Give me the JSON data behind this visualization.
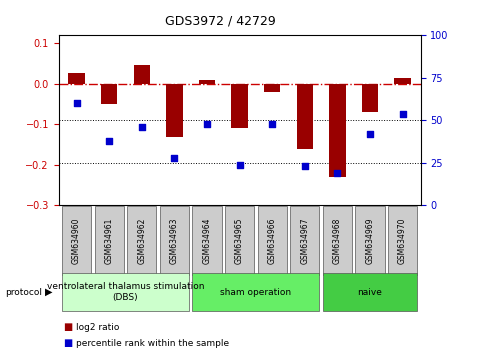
{
  "title": "GDS3972 / 42729",
  "samples": [
    "GSM634960",
    "GSM634961",
    "GSM634962",
    "GSM634963",
    "GSM634964",
    "GSM634965",
    "GSM634966",
    "GSM634967",
    "GSM634968",
    "GSM634969",
    "GSM634970"
  ],
  "log2_ratio": [
    0.027,
    -0.05,
    0.048,
    -0.13,
    0.01,
    -0.11,
    -0.02,
    -0.16,
    -0.23,
    -0.07,
    0.015
  ],
  "percentile_rank": [
    60,
    38,
    46,
    28,
    48,
    24,
    48,
    23,
    19,
    42,
    54
  ],
  "bar_color": "#990000",
  "dot_color": "#0000cc",
  "left_ylim": [
    -0.3,
    0.12
  ],
  "right_ylim": [
    0,
    100
  ],
  "left_yticks": [
    -0.3,
    -0.2,
    -0.1,
    0.0,
    0.1
  ],
  "right_yticks": [
    0,
    25,
    50,
    75,
    100
  ],
  "protocol_groups": [
    {
      "label": "ventrolateral thalamus stimulation\n(DBS)",
      "start": 0,
      "end": 3,
      "color": "#ccffcc"
    },
    {
      "label": "sham operation",
      "start": 4,
      "end": 7,
      "color": "#66ee66"
    },
    {
      "label": "naive",
      "start": 8,
      "end": 10,
      "color": "#44cc44"
    }
  ],
  "legend_log2_color": "#990000",
  "legend_dot_color": "#0000cc",
  "dotted_line_color": "#000000",
  "dashed_line_color": "#cc0000",
  "background_color": "#ffffff",
  "sample_box_color": "#cccccc",
  "title_fontsize": 9,
  "tick_fontsize": 7,
  "label_fontsize": 5.5,
  "proto_fontsize": 6.5,
  "legend_fontsize": 6.5
}
